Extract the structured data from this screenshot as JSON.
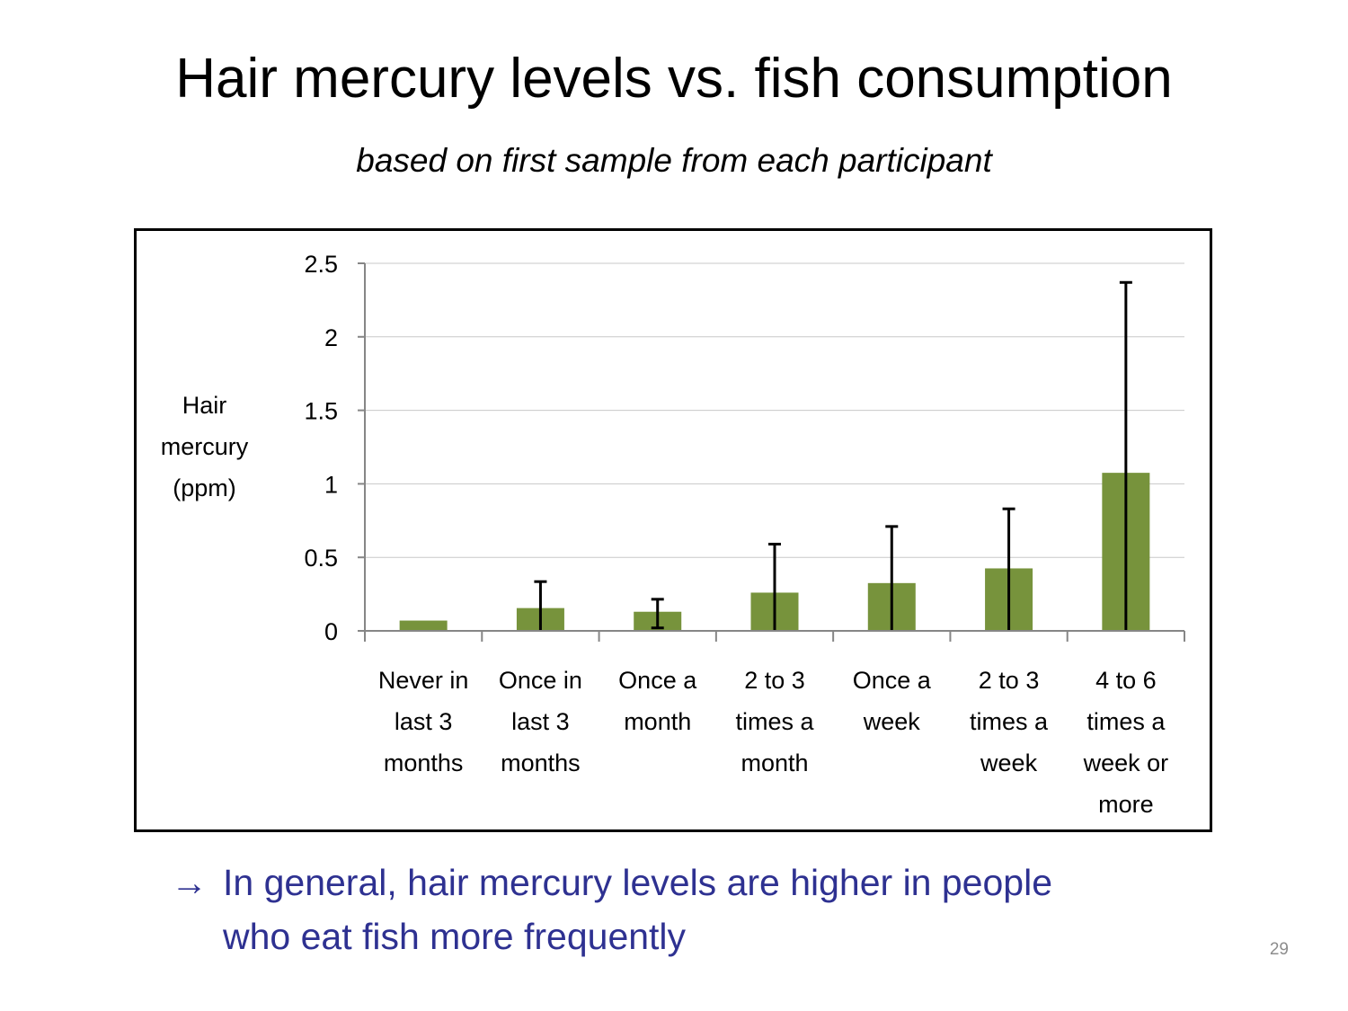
{
  "slide": {
    "title": "Hair mercury levels vs. fish consumption",
    "subtitle": "based on first sample from each participant",
    "conclusion_arrow": "→",
    "conclusion_line1": "In general, hair mercury levels are higher in people",
    "conclusion_line2": "who eat fish more frequently",
    "page_number": "29",
    "conclusion_color": "#2e3191"
  },
  "chart_data": {
    "type": "bar",
    "ylabel_lines": [
      "Hair",
      "mercury",
      "(ppm)"
    ],
    "ylim": [
      0,
      2.5
    ],
    "yticks": [
      "0",
      "0.5",
      "1",
      "1.5",
      "2",
      "2.5"
    ],
    "ytick_values": [
      0,
      0.5,
      1,
      1.5,
      2,
      2.5
    ],
    "grid": true,
    "bar_color": "#77933c",
    "categories": [
      [
        "Never in",
        "last 3",
        "months"
      ],
      [
        "Once in",
        "last 3",
        "months"
      ],
      [
        "Once a",
        "month"
      ],
      [
        "2 to 3",
        "times a",
        "month"
      ],
      [
        "Once a",
        "week"
      ],
      [
        "2 to 3",
        "times a",
        "week"
      ],
      [
        "4 to 6",
        "times a",
        "week or",
        "more"
      ]
    ],
    "values": [
      0.07,
      0.155,
      0.13,
      0.26,
      0.325,
      0.425,
      1.075
    ],
    "error_upper": [
      null,
      0.335,
      0.215,
      0.59,
      0.71,
      0.83,
      2.37
    ],
    "error_lower": [
      null,
      0,
      0.02,
      0,
      0,
      0,
      0
    ]
  }
}
